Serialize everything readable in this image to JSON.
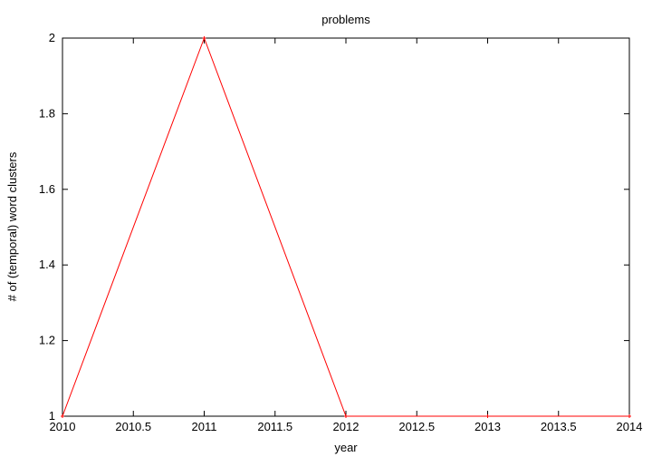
{
  "chart_data": {
    "type": "line",
    "title": "problems",
    "xlabel": "year",
    "ylabel": "# of (temporal) word clusters",
    "xlim": [
      2010,
      2014
    ],
    "ylim": [
      1,
      2
    ],
    "xticks": [
      2010,
      2010.5,
      2011,
      2011.5,
      2012,
      2012.5,
      2013,
      2013.5,
      2014
    ],
    "xtick_labels": [
      "2010",
      "2010.5",
      "2011",
      "2011.5",
      "2012",
      "2012.5",
      "2013",
      "2013.5",
      "2014"
    ],
    "yticks": [
      1,
      1.2,
      1.4,
      1.6,
      1.8,
      2
    ],
    "ytick_labels": [
      "1",
      "1.2",
      "1.4",
      "1.6",
      "1.8",
      "2"
    ],
    "grid": false,
    "series": [
      {
        "color": "#ff0000",
        "x": [
          2010,
          2011,
          2012,
          2013,
          2014
        ],
        "y": [
          1,
          2,
          1,
          1,
          1
        ]
      }
    ]
  }
}
